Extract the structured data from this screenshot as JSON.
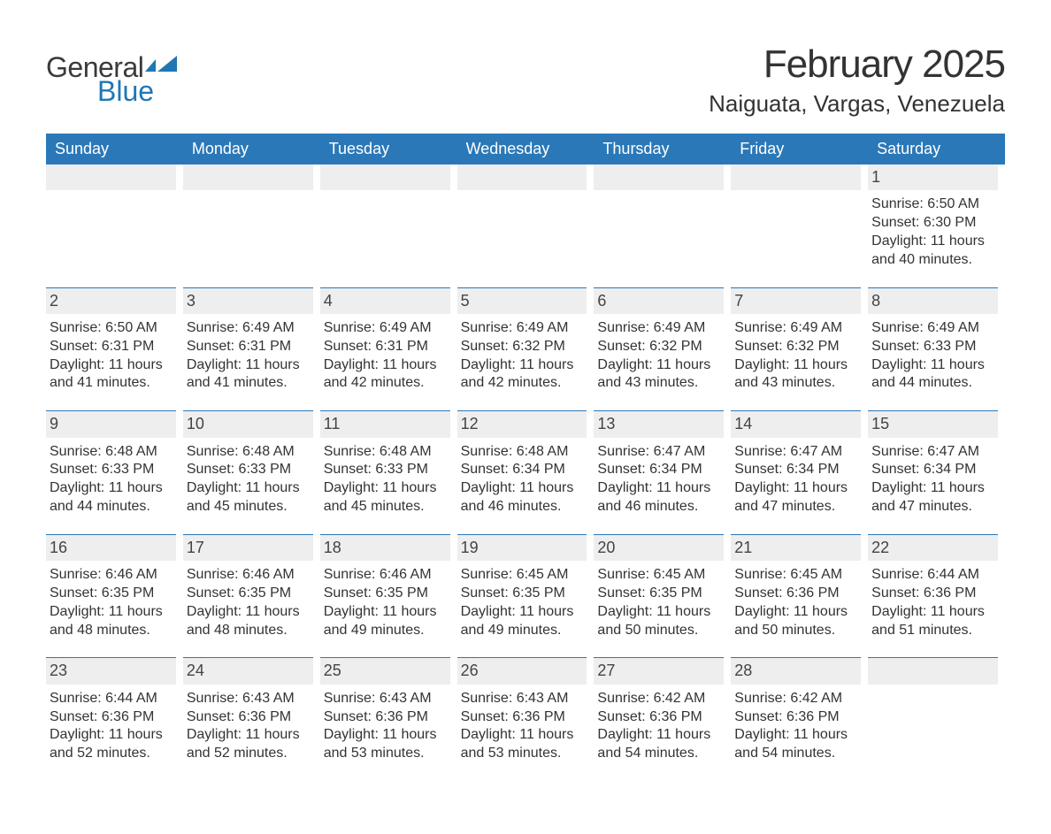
{
  "brand": {
    "general": "General",
    "blue": "Blue",
    "flag_color": "#1f77b4"
  },
  "title": {
    "month": "February 2025",
    "location": "Naiguata, Vargas, Venezuela"
  },
  "day_headers": [
    "Sunday",
    "Monday",
    "Tuesday",
    "Wednesday",
    "Thursday",
    "Friday",
    "Saturday"
  ],
  "colors": {
    "header_bg": "#2b78b8",
    "header_text": "#ffffff",
    "daynum_bg": "#eeeeee",
    "daynum_border": "#2b78b8",
    "text": "#333333",
    "background": "#ffffff"
  },
  "typography": {
    "month_fontsize": 44,
    "location_fontsize": 26,
    "dayheader_fontsize": 18,
    "daynum_fontsize": 18,
    "info_fontsize": 16
  },
  "layout": {
    "columns": 7,
    "leading_empty": 6
  },
  "days": [
    {
      "n": "1",
      "sunrise": "Sunrise: 6:50 AM",
      "sunset": "Sunset: 6:30 PM",
      "daylight": "Daylight: 11 hours and 40 minutes."
    },
    {
      "n": "2",
      "sunrise": "Sunrise: 6:50 AM",
      "sunset": "Sunset: 6:31 PM",
      "daylight": "Daylight: 11 hours and 41 minutes."
    },
    {
      "n": "3",
      "sunrise": "Sunrise: 6:49 AM",
      "sunset": "Sunset: 6:31 PM",
      "daylight": "Daylight: 11 hours and 41 minutes."
    },
    {
      "n": "4",
      "sunrise": "Sunrise: 6:49 AM",
      "sunset": "Sunset: 6:31 PM",
      "daylight": "Daylight: 11 hours and 42 minutes."
    },
    {
      "n": "5",
      "sunrise": "Sunrise: 6:49 AM",
      "sunset": "Sunset: 6:32 PM",
      "daylight": "Daylight: 11 hours and 42 minutes."
    },
    {
      "n": "6",
      "sunrise": "Sunrise: 6:49 AM",
      "sunset": "Sunset: 6:32 PM",
      "daylight": "Daylight: 11 hours and 43 minutes."
    },
    {
      "n": "7",
      "sunrise": "Sunrise: 6:49 AM",
      "sunset": "Sunset: 6:32 PM",
      "daylight": "Daylight: 11 hours and 43 minutes."
    },
    {
      "n": "8",
      "sunrise": "Sunrise: 6:49 AM",
      "sunset": "Sunset: 6:33 PM",
      "daylight": "Daylight: 11 hours and 44 minutes."
    },
    {
      "n": "9",
      "sunrise": "Sunrise: 6:48 AM",
      "sunset": "Sunset: 6:33 PM",
      "daylight": "Daylight: 11 hours and 44 minutes."
    },
    {
      "n": "10",
      "sunrise": "Sunrise: 6:48 AM",
      "sunset": "Sunset: 6:33 PM",
      "daylight": "Daylight: 11 hours and 45 minutes."
    },
    {
      "n": "11",
      "sunrise": "Sunrise: 6:48 AM",
      "sunset": "Sunset: 6:33 PM",
      "daylight": "Daylight: 11 hours and 45 minutes."
    },
    {
      "n": "12",
      "sunrise": "Sunrise: 6:48 AM",
      "sunset": "Sunset: 6:34 PM",
      "daylight": "Daylight: 11 hours and 46 minutes."
    },
    {
      "n": "13",
      "sunrise": "Sunrise: 6:47 AM",
      "sunset": "Sunset: 6:34 PM",
      "daylight": "Daylight: 11 hours and 46 minutes."
    },
    {
      "n": "14",
      "sunrise": "Sunrise: 6:47 AM",
      "sunset": "Sunset: 6:34 PM",
      "daylight": "Daylight: 11 hours and 47 minutes."
    },
    {
      "n": "15",
      "sunrise": "Sunrise: 6:47 AM",
      "sunset": "Sunset: 6:34 PM",
      "daylight": "Daylight: 11 hours and 47 minutes."
    },
    {
      "n": "16",
      "sunrise": "Sunrise: 6:46 AM",
      "sunset": "Sunset: 6:35 PM",
      "daylight": "Daylight: 11 hours and 48 minutes."
    },
    {
      "n": "17",
      "sunrise": "Sunrise: 6:46 AM",
      "sunset": "Sunset: 6:35 PM",
      "daylight": "Daylight: 11 hours and 48 minutes."
    },
    {
      "n": "18",
      "sunrise": "Sunrise: 6:46 AM",
      "sunset": "Sunset: 6:35 PM",
      "daylight": "Daylight: 11 hours and 49 minutes."
    },
    {
      "n": "19",
      "sunrise": "Sunrise: 6:45 AM",
      "sunset": "Sunset: 6:35 PM",
      "daylight": "Daylight: 11 hours and 49 minutes."
    },
    {
      "n": "20",
      "sunrise": "Sunrise: 6:45 AM",
      "sunset": "Sunset: 6:35 PM",
      "daylight": "Daylight: 11 hours and 50 minutes."
    },
    {
      "n": "21",
      "sunrise": "Sunrise: 6:45 AM",
      "sunset": "Sunset: 6:36 PM",
      "daylight": "Daylight: 11 hours and 50 minutes."
    },
    {
      "n": "22",
      "sunrise": "Sunrise: 6:44 AM",
      "sunset": "Sunset: 6:36 PM",
      "daylight": "Daylight: 11 hours and 51 minutes."
    },
    {
      "n": "23",
      "sunrise": "Sunrise: 6:44 AM",
      "sunset": "Sunset: 6:36 PM",
      "daylight": "Daylight: 11 hours and 52 minutes."
    },
    {
      "n": "24",
      "sunrise": "Sunrise: 6:43 AM",
      "sunset": "Sunset: 6:36 PM",
      "daylight": "Daylight: 11 hours and 52 minutes."
    },
    {
      "n": "25",
      "sunrise": "Sunrise: 6:43 AM",
      "sunset": "Sunset: 6:36 PM",
      "daylight": "Daylight: 11 hours and 53 minutes."
    },
    {
      "n": "26",
      "sunrise": "Sunrise: 6:43 AM",
      "sunset": "Sunset: 6:36 PM",
      "daylight": "Daylight: 11 hours and 53 minutes."
    },
    {
      "n": "27",
      "sunrise": "Sunrise: 6:42 AM",
      "sunset": "Sunset: 6:36 PM",
      "daylight": "Daylight: 11 hours and 54 minutes."
    },
    {
      "n": "28",
      "sunrise": "Sunrise: 6:42 AM",
      "sunset": "Sunset: 6:36 PM",
      "daylight": "Daylight: 11 hours and 54 minutes."
    }
  ]
}
